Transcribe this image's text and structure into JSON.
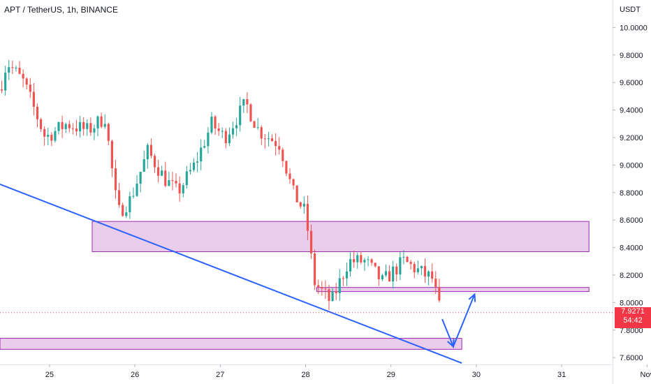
{
  "header": {
    "symbol": "APT / TetherUS, 1h, BINANCE",
    "currency": "USDT"
  },
  "current_price": {
    "value": "7.9271",
    "countdown": "54:42",
    "color": "#f23645"
  },
  "colors": {
    "up": "#26a69a",
    "down": "#ef5350",
    "zone_fill": "#e9cdea",
    "zone_stroke": "#9c27b0",
    "trendline": "#2962ff",
    "arrow": "#2962ff",
    "axis_text": "#131722"
  },
  "chart_data": {
    "type": "candlestick",
    "title": "APT / TetherUS, 1h, BINANCE",
    "y_axis": {
      "label": "USDT",
      "range": [
        7.55,
        10.2
      ],
      "ticks": [
        "10.0000",
        "9.8000",
        "9.6000",
        "9.4000",
        "9.2000",
        "9.0000",
        "8.8000",
        "8.6000",
        "8.4000",
        "8.2000",
        "8.0000",
        "7.8000",
        "7.6000"
      ]
    },
    "x_axis": {
      "range": [
        24.42,
        32.03
      ],
      "ticks": [
        {
          "label": "25",
          "day": 25
        },
        {
          "label": "26",
          "day": 26
        },
        {
          "label": "27",
          "day": 27
        },
        {
          "label": "28",
          "day": 28
        },
        {
          "label": "29",
          "day": 29
        },
        {
          "label": "30",
          "day": 30
        },
        {
          "label": "31",
          "day": 31
        },
        {
          "label": "Nov",
          "day": 32
        }
      ]
    },
    "grid": false,
    "legend": "none",
    "anchors": [
      {
        "day": 24.42,
        "price": 9.55
      },
      {
        "day": 24.5,
        "price": 9.75
      },
      {
        "day": 24.7,
        "price": 9.6
      },
      {
        "day": 24.95,
        "price": 9.2
      },
      {
        "day": 25.2,
        "price": 9.3
      },
      {
        "day": 25.45,
        "price": 9.25
      },
      {
        "day": 25.65,
        "price": 9.35
      },
      {
        "day": 25.8,
        "price": 8.65
      },
      {
        "day": 25.95,
        "price": 8.75
      },
      {
        "day": 26.15,
        "price": 9.1
      },
      {
        "day": 26.35,
        "price": 8.9
      },
      {
        "day": 26.5,
        "price": 8.8
      },
      {
        "day": 26.7,
        "price": 9.0
      },
      {
        "day": 26.9,
        "price": 9.3
      },
      {
        "day": 27.05,
        "price": 9.2
      },
      {
        "day": 27.3,
        "price": 9.45
      },
      {
        "day": 27.45,
        "price": 9.25
      },
      {
        "day": 27.7,
        "price": 9.15
      },
      {
        "day": 27.85,
        "price": 8.8
      },
      {
        "day": 28.0,
        "price": 8.65
      },
      {
        "day": 28.1,
        "price": 8.15
      },
      {
        "day": 28.3,
        "price": 8.0
      },
      {
        "day": 28.5,
        "price": 8.3
      },
      {
        "day": 28.7,
        "price": 8.3
      },
      {
        "day": 28.9,
        "price": 8.15
      },
      {
        "day": 29.15,
        "price": 8.3
      },
      {
        "day": 29.4,
        "price": 8.2
      },
      {
        "day": 29.48,
        "price": 8.18
      },
      {
        "day": 29.58,
        "price": 7.93
      }
    ],
    "zones": [
      {
        "from_day": 25.5,
        "to_day": 31.32,
        "low": 8.37,
        "high": 8.59
      },
      {
        "from_day": 28.13,
        "to_day": 31.32,
        "low": 8.08,
        "high": 8.11
      },
      {
        "from_day": 24.42,
        "to_day": 29.83,
        "low": 7.66,
        "high": 7.74
      }
    ],
    "trendline": [
      {
        "day": 24.42,
        "price": 8.86
      },
      {
        "day": 29.83,
        "price": 7.56
      }
    ],
    "projection_arrow": [
      {
        "day": 29.6,
        "price": 7.88
      },
      {
        "day": 29.73,
        "price": 7.68
      },
      {
        "day": 29.98,
        "price": 8.06
      }
    ],
    "last_price": 7.9271
  }
}
